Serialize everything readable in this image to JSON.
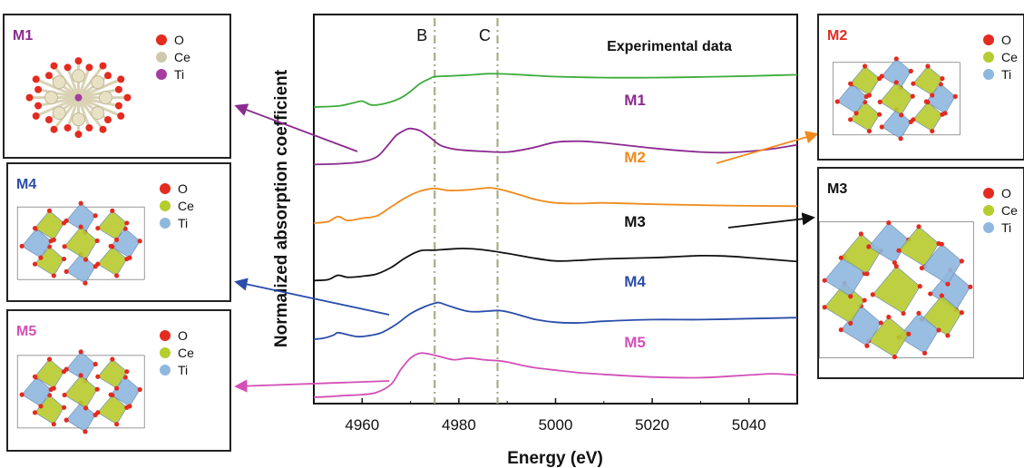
{
  "chart_data": {
    "type": "line",
    "xlabel": "Energy (eV)",
    "ylabel": "Normalized absorption coefficient",
    "xlim": [
      4950,
      5050
    ],
    "xticks": [
      4960,
      4980,
      5000,
      5020,
      5040
    ],
    "yticks": false,
    "grid": false,
    "vertical_lines": [
      {
        "label": "B",
        "x": 4975,
        "color": "#a7ad85"
      },
      {
        "label": "C",
        "x": 4988,
        "color": "#a7ad85"
      }
    ],
    "series": [
      {
        "name": "Experimental data",
        "color": "#3cac3c",
        "offset": 5,
        "x": [
          4950,
          4955,
          4958,
          4960,
          4962,
          4965,
          4968,
          4970,
          4972,
          4974,
          4975,
          4978,
          4982,
          4986,
          4990,
          4995,
          5000,
          5010,
          5020,
          5030,
          5040,
          5050
        ],
        "y": [
          0.0,
          0.03,
          0.12,
          0.18,
          0.06,
          0.12,
          0.28,
          0.48,
          0.72,
          0.87,
          0.93,
          0.95,
          0.98,
          1.02,
          1.01,
          0.97,
          0.93,
          0.9,
          0.9,
          0.92,
          0.95,
          0.99
        ]
      },
      {
        "name": "M1",
        "color": "#8b2a8e",
        "offset": 4,
        "x": [
          4950,
          4955,
          4960,
          4963,
          4965,
          4967,
          4969,
          4970,
          4972,
          4974,
          4976,
          4978,
          4980,
          4985,
          4990,
          4995,
          5000,
          5005,
          5010,
          5020,
          5030,
          5035,
          5040,
          5045,
          5050
        ],
        "y": [
          0.02,
          0.04,
          0.1,
          0.25,
          0.55,
          0.9,
          1.08,
          1.12,
          1.05,
          0.85,
          0.62,
          0.52,
          0.47,
          0.42,
          0.4,
          0.52,
          0.7,
          0.73,
          0.68,
          0.52,
          0.4,
          0.38,
          0.42,
          0.5,
          0.62
        ]
      },
      {
        "name": "M2",
        "color": "#f08a1c",
        "offset": 3,
        "x": [
          4950,
          4953,
          4955,
          4957,
          4960,
          4963,
          4966,
          4969,
          4972,
          4975,
          4978,
          4982,
          4986,
          4988,
          4990,
          4993,
          4996,
          5000,
          5005,
          5010,
          5020,
          5030,
          5040,
          5050
        ],
        "y": [
          0.0,
          0.05,
          0.2,
          0.08,
          0.15,
          0.22,
          0.5,
          0.78,
          0.98,
          1.06,
          1.0,
          1.02,
          1.08,
          1.05,
          0.98,
          0.85,
          0.72,
          0.62,
          0.6,
          0.62,
          0.58,
          0.55,
          0.53,
          0.52
        ]
      },
      {
        "name": "M3",
        "color": "#111111",
        "offset": 2,
        "x": [
          4950,
          4953,
          4955,
          4957,
          4960,
          4963,
          4966,
          4969,
          4972,
          4975,
          4978,
          4981,
          4985,
          4990,
          4995,
          5000,
          5005,
          5010,
          5020,
          5025,
          5030,
          5035,
          5040,
          5045,
          5050
        ],
        "y": [
          0.02,
          0.05,
          0.18,
          0.12,
          0.15,
          0.22,
          0.42,
          0.72,
          0.93,
          0.95,
          0.98,
          1.0,
          0.96,
          0.85,
          0.72,
          0.62,
          0.64,
          0.68,
          0.72,
          0.75,
          0.78,
          0.77,
          0.72,
          0.66,
          0.6
        ]
      },
      {
        "name": "M4",
        "color": "#2b4daa",
        "offset": 1,
        "x": [
          4950,
          4952,
          4954,
          4955,
          4957,
          4959,
          4961,
          4964,
          4967,
          4970,
          4973,
          4975,
          4976,
          4978,
          4982,
          4986,
          4988,
          4990,
          4993,
          4996,
          5000,
          5005,
          5010,
          5020,
          5030,
          5040,
          5050
        ],
        "y": [
          0.0,
          0.03,
          0.12,
          0.2,
          0.14,
          0.08,
          0.1,
          0.2,
          0.45,
          0.78,
          1.0,
          1.1,
          1.12,
          1.02,
          0.85,
          0.86,
          0.88,
          0.84,
          0.72,
          0.6,
          0.52,
          0.5,
          0.55,
          0.6,
          0.6,
          0.63,
          0.66
        ]
      },
      {
        "name": "M5",
        "color": "#d34fb7",
        "offset": 0,
        "x": [
          4950,
          4953,
          4956,
          4960,
          4963,
          4966,
          4968,
          4970,
          4972,
          4974,
          4976,
          4979,
          4982,
          4985,
          4988,
          4990,
          4993,
          4996,
          5000,
          5005,
          5010,
          5020,
          5030,
          5040,
          5045,
          5050
        ],
        "y": [
          0.0,
          0.02,
          0.05,
          0.08,
          0.15,
          0.4,
          0.85,
          1.2,
          1.35,
          1.32,
          1.25,
          1.15,
          1.2,
          1.15,
          1.12,
          1.08,
          0.98,
          0.9,
          0.83,
          0.75,
          0.7,
          0.62,
          0.6,
          0.68,
          0.72,
          0.68
        ]
      }
    ]
  },
  "panels": [
    {
      "id": "M1",
      "title": "M1",
      "title_color": "#8b2a8e",
      "legend": [
        {
          "label": "O",
          "color": "#e32b20"
        },
        {
          "label": "Ce",
          "color": "#cfc9ad"
        },
        {
          "label": "Ti",
          "color": "#a63c9e"
        }
      ]
    },
    {
      "id": "M4",
      "title": "M4",
      "title_color": "#2b4daa",
      "legend": [
        {
          "label": "O",
          "color": "#e32b20"
        },
        {
          "label": "Ce",
          "color": "#b7cc2e"
        },
        {
          "label": "Ti",
          "color": "#8fb8df"
        }
      ]
    },
    {
      "id": "M5",
      "title": "M5",
      "title_color": "#d34fb7",
      "legend": [
        {
          "label": "O",
          "color": "#e32b20"
        },
        {
          "label": "Ce",
          "color": "#b7cc2e"
        },
        {
          "label": "Ti",
          "color": "#8fb8df"
        }
      ]
    },
    {
      "id": "M2",
      "title": "M2",
      "title_color": "#e32b20",
      "legend": [
        {
          "label": "O",
          "color": "#e32b20"
        },
        {
          "label": "Ce",
          "color": "#b7cc2e"
        },
        {
          "label": "Ti",
          "color": "#8fb8df"
        }
      ]
    },
    {
      "id": "M3",
      "title": "M3",
      "title_color": "#111111",
      "legend": [
        {
          "label": "O",
          "color": "#e32b20"
        },
        {
          "label": "Ce",
          "color": "#b7cc2e"
        },
        {
          "label": "Ti",
          "color": "#8fb8df"
        }
      ]
    }
  ]
}
